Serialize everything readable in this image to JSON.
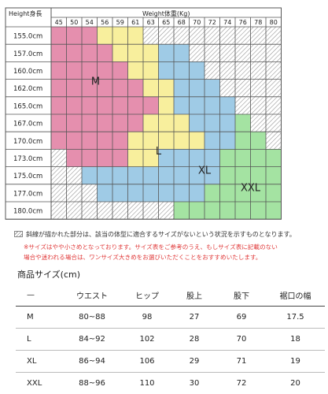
{
  "grid": {
    "height_header": "Height身長",
    "weight_header": "Weight体重(Kg)",
    "weights": [
      "45",
      "50",
      "54",
      "56",
      "59",
      "61",
      "63",
      "65",
      "68",
      "70",
      "72",
      "74",
      "76",
      "78",
      "80"
    ],
    "heights": [
      "155.0cm",
      "157.0cm",
      "160.0cm",
      "162.0cm",
      "165.0cm",
      "167.0cm",
      "170.0cm",
      "173.0cm",
      "175.0cm",
      "177.0cm",
      "180.0cm"
    ],
    "rows": [
      [
        "M",
        "M",
        "M",
        "L",
        "L",
        "L",
        "-",
        "-",
        "-",
        "-",
        "-",
        "-",
        "-",
        "-",
        "-"
      ],
      [
        "M",
        "M",
        "M",
        "M",
        "L",
        "L",
        "L",
        "XL",
        "XL",
        "-",
        "-",
        "-",
        "-",
        "-",
        "-"
      ],
      [
        "M",
        "M",
        "M",
        "M",
        "M",
        "L",
        "L",
        "XL",
        "XL",
        "XL",
        "-",
        "-",
        "-",
        "-",
        "-"
      ],
      [
        "M",
        "M",
        "M",
        "M",
        "M",
        "M",
        "L",
        "L",
        "XL",
        "XL",
        "XL",
        "-",
        "-",
        "-",
        "-"
      ],
      [
        "M",
        "M",
        "M",
        "M",
        "M",
        "M",
        "M",
        "L",
        "XL",
        "XL",
        "XL",
        "XL",
        "-",
        "-",
        "-"
      ],
      [
        "M",
        "M",
        "M",
        "M",
        "M",
        "M",
        "L",
        "L",
        "L",
        "XL",
        "XL",
        "XL",
        "XXL",
        "-",
        "-"
      ],
      [
        "M",
        "M",
        "M",
        "M",
        "M",
        "L",
        "L",
        "L",
        "L",
        "L",
        "XL",
        "XL",
        "XXL",
        "XXL",
        "-"
      ],
      [
        "-",
        "M",
        "M",
        "M",
        "M",
        "L",
        "L",
        "XL",
        "XL",
        "XL",
        "XL",
        "XXL",
        "XXL",
        "XXL",
        "XXL"
      ],
      [
        "-",
        "-",
        "XL",
        "XL",
        "XL",
        "XL",
        "XL",
        "XL",
        "XL",
        "XL",
        "XL",
        "XXL",
        "XXL",
        "XXL",
        "XXL"
      ],
      [
        "-",
        "-",
        "-",
        "XL",
        "XL",
        "XL",
        "XL",
        "XL",
        "XL",
        "XL",
        "XXL",
        "XXL",
        "XXL",
        "XXL",
        "XXL"
      ],
      [
        "-",
        "-",
        "-",
        "-",
        "-",
        "-",
        "-",
        "-",
        "XXL",
        "XXL",
        "XXL",
        "XXL",
        "XXL",
        "XXL",
        "XXL"
      ]
    ],
    "size_labels": [
      "M",
      "L",
      "XL",
      "XXL"
    ],
    "colors": {
      "M": "#e58fae",
      "L": "#f8ef9d",
      "XL": "#9fcbe6",
      "XXL": "#a4e3a2",
      "hatch": "#8f8f8f",
      "border": "#555555"
    }
  },
  "legend_text": "斜線が描かれた部分は、該当の体型に適合するサイズがないという状況を示すものとなります。",
  "notes": [
    "※サイズはやや小さめとなっております。サイズ表をご参考のうえ、もしサイズ表に記載のない",
    "場合や迷われる場合は、ワンサイズ大きめをお選びいただくことをおすすめいたします。"
  ],
  "table": {
    "title": "商品サイズ(cm)",
    "headers": [
      "—",
      "ウエスト",
      "ヒップ",
      "股上",
      "股下",
      "裾口の幅"
    ],
    "rows": [
      [
        "M",
        "80~88",
        "98",
        "27",
        "69",
        "17.5"
      ],
      [
        "L",
        "84~92",
        "102",
        "28",
        "70",
        "18"
      ],
      [
        "XL",
        "86~94",
        "106",
        "29",
        "71",
        "19"
      ],
      [
        "XXL",
        "88~96",
        "110",
        "30",
        "72",
        "20"
      ]
    ]
  }
}
